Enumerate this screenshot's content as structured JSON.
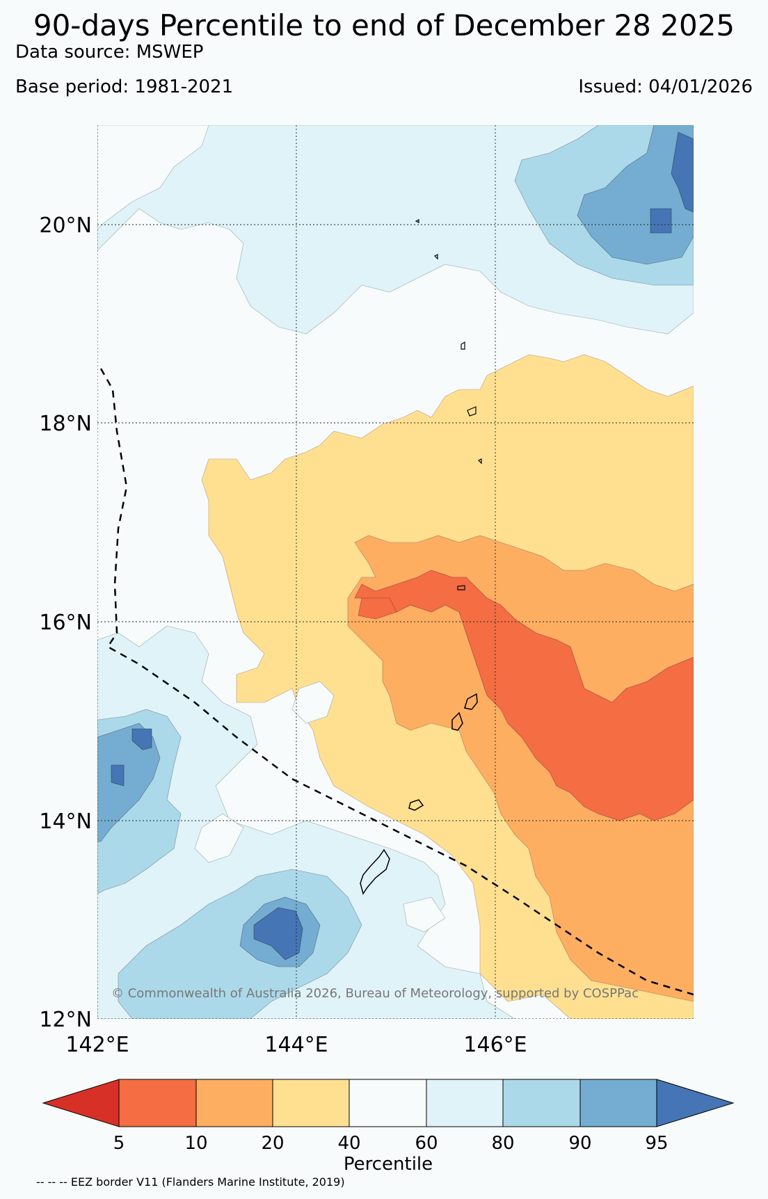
{
  "header": {
    "title": "90-days Percentile to end of December 28 2025",
    "source": "Data source: MSWEP",
    "base_period": "Base period: 1981-2021",
    "issued": "Issued: 04/01/2026"
  },
  "map": {
    "lat_labels": [
      "20°N",
      "18°N",
      "16°N",
      "14°N",
      "12°N"
    ],
    "lon_labels": [
      "142°E",
      "144°E",
      "146°E"
    ],
    "copyright": "© Commonwealth of Australia 2026, Bureau of Meteorology, supported by COSPPac",
    "extent": {
      "lon_min": 142,
      "lon_max": 148,
      "lat_min": 12,
      "lat_max": 21
    },
    "colors": {
      "pct_0_5": "#d73027",
      "pct_5_10": "#f46d43",
      "pct_10_20": "#fdae61",
      "pct_20_40": "#fee090",
      "pct_40_60": "#f7fbfc",
      "pct_60_80": "#e0f3f8",
      "pct_80_90": "#abd9e9",
      "pct_90_95": "#74add1",
      "pct_95_100": "#4575b4"
    }
  },
  "colorbar": {
    "ticks": [
      "5",
      "10",
      "20",
      "40",
      "60",
      "80",
      "90",
      "95"
    ],
    "label": "Percentile"
  },
  "footer": {
    "eez_note": "-- -- -- EEZ border V11 (Flanders Marine Institute, 2019)"
  }
}
